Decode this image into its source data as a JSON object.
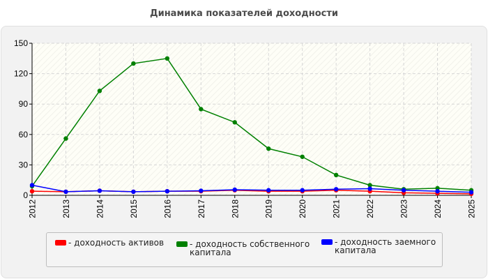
{
  "chart_data": {
    "type": "line",
    "title": "Динамика показателей доходности",
    "xlabel": "",
    "ylabel": "",
    "categories": [
      "2012",
      "2013",
      "2014",
      "2015",
      "2016",
      "2017",
      "2018",
      "2019",
      "2020",
      "2021",
      "2022",
      "2023",
      "2024",
      "2025"
    ],
    "ylim": [
      0,
      150
    ],
    "yticks": [
      0,
      30,
      60,
      90,
      120,
      150
    ],
    "grid": true,
    "legend_position": "bottom",
    "series": [
      {
        "name": "- доходность активов",
        "color": "#ff0000",
        "values": [
          4,
          3.5,
          4.5,
          3.5,
          4,
          4,
          5,
          4,
          4,
          5,
          4,
          2.5,
          2,
          1.5
        ]
      },
      {
        "name": "- доходность собственного капитала",
        "color": "#008000",
        "values": [
          9,
          56,
          103,
          130,
          135,
          85,
          72,
          46,
          38,
          20,
          10,
          6,
          7,
          5
        ]
      },
      {
        "name": "- доходность заемного капитала",
        "color": "#0000ff",
        "values": [
          10,
          3.5,
          4.5,
          3.5,
          4,
          4.5,
          5.5,
          5,
          5,
          6,
          6.5,
          5,
          4,
          3
        ]
      }
    ]
  }
}
